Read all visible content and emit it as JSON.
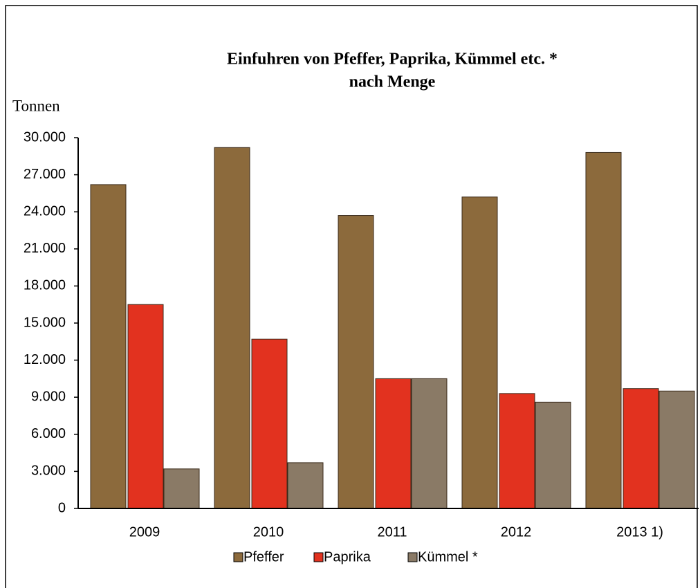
{
  "chart_data": {
    "type": "bar",
    "title": "Einfuhren von Pfeffer, Paprika, Kümmel etc. *",
    "subtitle": "nach Menge",
    "y_label": "Tonnen",
    "categories": [
      "2009",
      "2010",
      "2011",
      "2012",
      "2013 1)"
    ],
    "series": [
      {
        "name": "Pfeffer",
        "color": "#8c6a3c",
        "values": [
          26200,
          29200,
          23700,
          25200,
          28800
        ]
      },
      {
        "name": "Paprika",
        "color": "#e2321f",
        "values": [
          16500,
          13700,
          10500,
          9300,
          9700
        ]
      },
      {
        "name": "Kümmel *",
        "color": "#8a7a66",
        "values": [
          3200,
          3700,
          10500,
          8600,
          9500
        ]
      }
    ],
    "ylim": [
      0,
      30000
    ],
    "yticks": [
      0,
      {
        "value": 3000,
        "label": "3.000"
      },
      {
        "value": 6000,
        "label": "6.000"
      },
      {
        "value": 9000,
        "label": "9.000"
      },
      {
        "value": 12000,
        "label": "12.000"
      },
      {
        "value": 15000,
        "label": "15.000"
      },
      {
        "value": 18000,
        "label": "18.000"
      },
      {
        "value": 21000,
        "label": "21.000"
      },
      {
        "value": 24000,
        "label": "24.000"
      },
      {
        "value": 27000,
        "label": "27.000"
      },
      {
        "value": 30000,
        "label": "30.000"
      }
    ],
    "grid": false,
    "legend": "bottom"
  }
}
